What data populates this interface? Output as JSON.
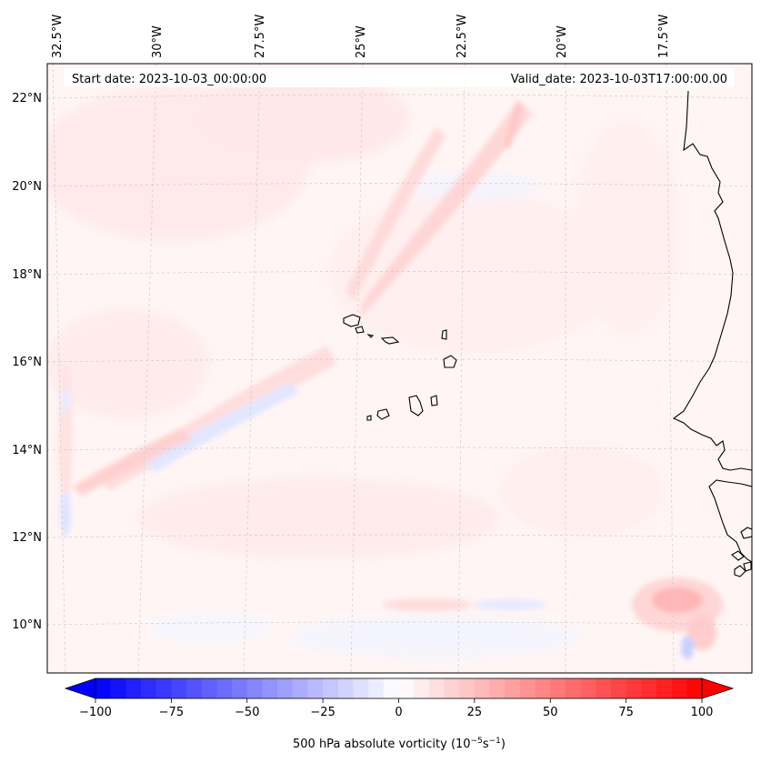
{
  "map": {
    "start_label": "Start date: 2023-10-03_00:00:00",
    "valid_label": "Valid_date: 2023-10-03T17:00:00.00",
    "lon_labels": [
      {
        "text": "32.5°W",
        "value": -32.5
      },
      {
        "text": "30°W",
        "value": -30
      },
      {
        "text": "27.5°W",
        "value": -27.5
      },
      {
        "text": "25°W",
        "value": -25
      },
      {
        "text": "22.5°W",
        "value": -22.5
      },
      {
        "text": "20°W",
        "value": -20
      },
      {
        "text": "17.5°W",
        "value": -17.5
      }
    ],
    "lat_labels": [
      {
        "text": "22°N",
        "value": 22
      },
      {
        "text": "20°N",
        "value": 20
      },
      {
        "text": "18°N",
        "value": 18
      },
      {
        "text": "16°N",
        "value": 16
      },
      {
        "text": "14°N",
        "value": 14
      },
      {
        "text": "12°N",
        "value": 12
      },
      {
        "text": "10°N",
        "value": 10
      }
    ],
    "colors": {
      "neg_extreme": "#0000ff",
      "zero": "#ffffff",
      "pos_extreme": "#ff0000",
      "coastline": "#000000",
      "gridline": "#cccccc"
    }
  },
  "colorbar": {
    "label_prefix": "500 hPa absolute vorticity (10",
    "label_exp1": "−5",
    "label_mid": "s",
    "label_exp2": "−1",
    "label_suffix": ")",
    "min": -100,
    "max": 100,
    "step": 5,
    "ticks": [
      {
        "text": "−100",
        "value": -100
      },
      {
        "text": "−75",
        "value": -75
      },
      {
        "text": "−50",
        "value": -50
      },
      {
        "text": "−25",
        "value": -25
      },
      {
        "text": "0",
        "value": 0
      },
      {
        "text": "25",
        "value": 25
      },
      {
        "text": "50",
        "value": 50
      },
      {
        "text": "75",
        "value": 75
      },
      {
        "text": "100",
        "value": 100
      }
    ]
  }
}
